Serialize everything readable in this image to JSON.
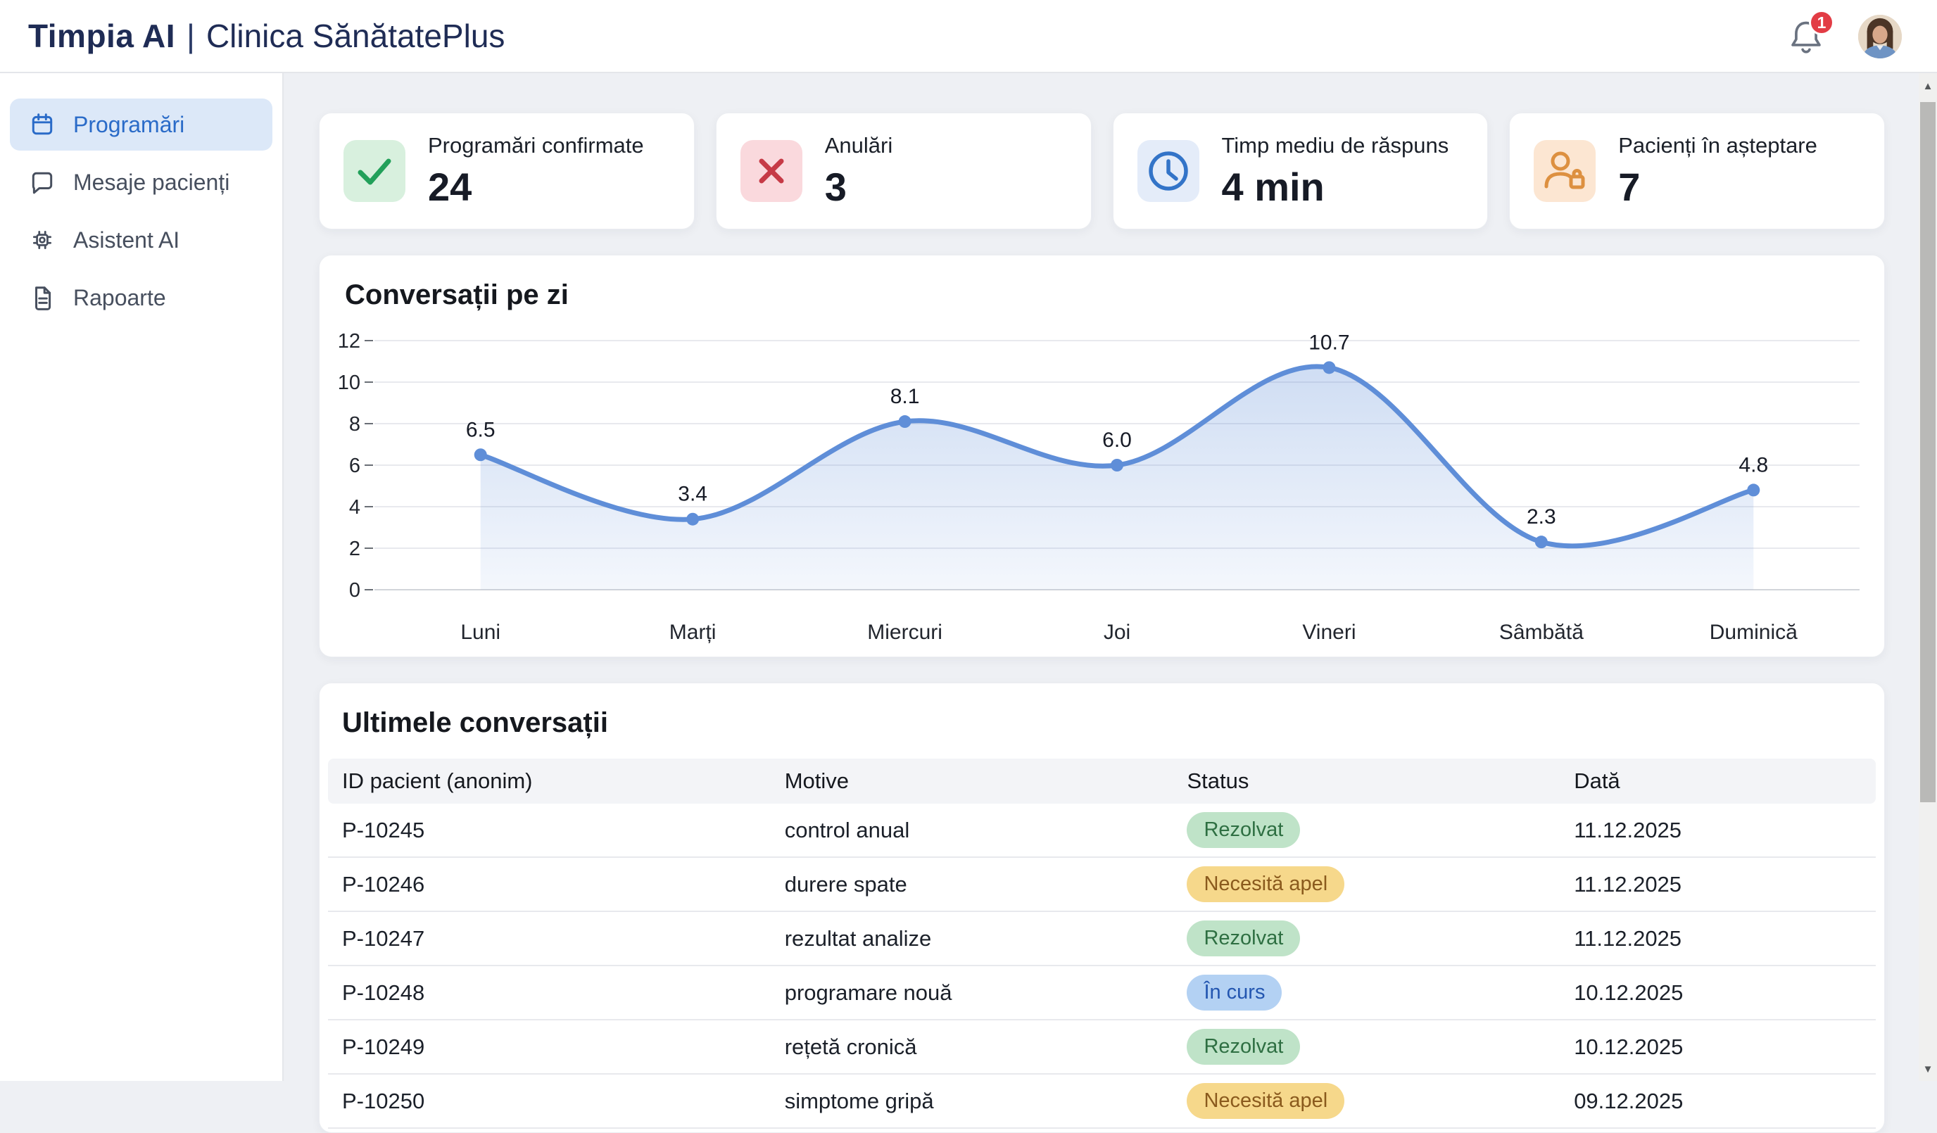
{
  "header": {
    "brand": "Timpia AI",
    "separator": "|",
    "clinic": "Clinica SănătatePlus",
    "notification_count": "1"
  },
  "sidebar": {
    "items": [
      {
        "label": "Programări",
        "icon": "calendar-icon",
        "active": true
      },
      {
        "label": "Mesaje pacienți",
        "icon": "chat-icon",
        "active": false
      },
      {
        "label": "Asistent AI",
        "icon": "ai-icon",
        "active": false
      },
      {
        "label": "Rapoarte",
        "icon": "report-icon",
        "active": false
      }
    ]
  },
  "stats": [
    {
      "label": "Programări confirmate",
      "value": "24",
      "icon": "check-icon",
      "accent": "#22a05a",
      "accent_bg": "#d8f0de"
    },
    {
      "label": "Anulări",
      "value": "3",
      "icon": "x-icon",
      "accent": "#c63a46",
      "accent_bg": "#fad9dd"
    },
    {
      "label": "Timp mediu de răspuns",
      "value": "4 min",
      "icon": "clock-icon",
      "accent": "#3374c8",
      "accent_bg": "#e4ecf9"
    },
    {
      "label": "Pacienți în așteptare",
      "value": "7",
      "icon": "person-lock-icon",
      "accent": "#dd9040",
      "accent_bg": "#fce6d2"
    }
  ],
  "chart_data": {
    "type": "line",
    "title": "Conversații pe zi",
    "categories": [
      "Luni",
      "Marți",
      "Miercuri",
      "Joi",
      "Vineri",
      "Sâmbătă",
      "Duminică"
    ],
    "values": [
      6.5,
      3.4,
      8.1,
      6.0,
      10.7,
      2.3,
      4.8
    ],
    "point_labels": [
      "6.5",
      "3.4",
      "8.1",
      "6.0",
      "10.7",
      "2.3",
      "4.8"
    ],
    "xlabel": "",
    "ylabel": "",
    "ylim": [
      0,
      12
    ],
    "yticks": [
      0,
      2,
      4,
      6,
      8,
      10,
      12
    ],
    "grid": true,
    "legend": false,
    "line_color": "#5f8ed8",
    "area_fill": "gradient-light-blue",
    "smooth": true
  },
  "table": {
    "title": "Ultimele conversații",
    "columns": [
      "ID pacient (anonim)",
      "Motive",
      "Status",
      "Dată"
    ],
    "rows": [
      {
        "id": "P-10245",
        "motive": "control anual",
        "status": "Rezolvat",
        "status_type": "resolved",
        "date": "11.12.2025"
      },
      {
        "id": "P-10246",
        "motive": "durere spate",
        "status": "Necesită apel",
        "status_type": "call",
        "date": "11.12.2025"
      },
      {
        "id": "P-10247",
        "motive": "rezultat analize",
        "status": "Rezolvat",
        "status_type": "resolved",
        "date": "11.12.2025"
      },
      {
        "id": "P-10248",
        "motive": "programare nouă",
        "status": "În curs",
        "status_type": "progress",
        "date": "10.12.2025"
      },
      {
        "id": "P-10249",
        "motive": "rețetă cronică",
        "status": "Rezolvat",
        "status_type": "resolved",
        "date": "10.12.2025"
      },
      {
        "id": "P-10250",
        "motive": "simptome gripă",
        "status": "Necesită apel",
        "status_type": "call",
        "date": "09.12.2025"
      }
    ]
  },
  "colors": {
    "page_bg": "#eef0f4",
    "brand_navy": "#1f2c55",
    "accent_blue": "#2a6bc8",
    "sidebar_active_bg": "#dce8f8",
    "chart_line": "#5f8ed8",
    "notification_red": "#e23c45",
    "badge_resolved_bg": "#bfe3c8",
    "badge_resolved_text": "#2e6f42",
    "badge_call_bg": "#f6d88b",
    "badge_call_text": "#8a5a1d",
    "badge_progress_bg": "#b3d1f3",
    "badge_progress_text": "#2356b0"
  }
}
